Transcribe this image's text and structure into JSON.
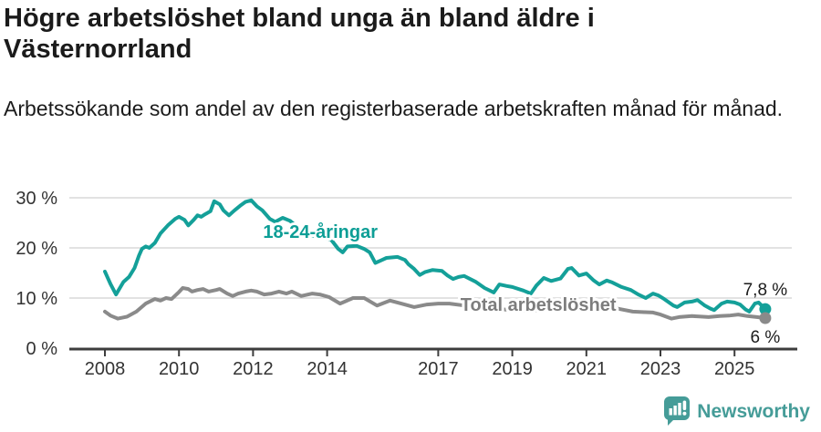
{
  "header": {
    "title": "Högre arbetslöshet bland unga än bland äldre i Västernorrland",
    "subtitle": "Arbetssökande som andel av den registerbaserade arbetskraften månad för månad."
  },
  "footer": {
    "brand": "Newsworthy",
    "logo_icon": "newsworthy-speech-bubble-bar-chart"
  },
  "colors": {
    "youth_line": "#14a099",
    "total_line": "#8a8a8a",
    "total_label": "#7d7d7d",
    "axis": "#3d3d3d",
    "grid": "#d9d9d9",
    "text": "#1b1b1b",
    "brand": "#459c98"
  },
  "chart_data": {
    "type": "line",
    "unit": "%",
    "grid": "horizontal",
    "legend_position": "inline-labels",
    "x_axis": {
      "min": 2007.85,
      "max": 2026.1,
      "ticks": [
        {
          "value": 2008,
          "label": "2008"
        },
        {
          "value": 2010,
          "label": "2010"
        },
        {
          "value": 2012,
          "label": "2012"
        },
        {
          "value": 2014,
          "label": "2014"
        },
        {
          "value": 2017,
          "label": "2017"
        },
        {
          "value": 2019,
          "label": "2019"
        },
        {
          "value": 2021,
          "label": "2021"
        },
        {
          "value": 2023,
          "label": "2023"
        },
        {
          "value": 2025,
          "label": "2025"
        }
      ]
    },
    "y_axis": {
      "min": 0,
      "max": 30,
      "ticks": [
        {
          "value": 0,
          "label": "0 %"
        },
        {
          "value": 10,
          "label": "10 %"
        },
        {
          "value": 20,
          "label": "20 %"
        },
        {
          "value": 30,
          "label": "30 %"
        }
      ]
    },
    "series": [
      {
        "name": "18-24-åringar",
        "color": "#14a099",
        "end_value_label": "7,8 %",
        "end_label_position": "above",
        "points": [
          [
            2008,
            15.3
          ],
          [
            2008.15,
            12.8
          ],
          [
            2008.3,
            10.7
          ],
          [
            2008.5,
            13.2
          ],
          [
            2008.65,
            14.2
          ],
          [
            2008.8,
            16
          ],
          [
            2008.92,
            18.5
          ],
          [
            2009,
            19.8
          ],
          [
            2009.1,
            20.3
          ],
          [
            2009.2,
            20
          ],
          [
            2009.35,
            21
          ],
          [
            2009.5,
            22.9
          ],
          [
            2009.7,
            24.5
          ],
          [
            2009.9,
            25.8
          ],
          [
            2010,
            26.2
          ],
          [
            2010.15,
            25.6
          ],
          [
            2010.25,
            24.5
          ],
          [
            2010.4,
            25.6
          ],
          [
            2010.5,
            26.5
          ],
          [
            2010.6,
            26.2
          ],
          [
            2010.7,
            26.7
          ],
          [
            2010.85,
            27.3
          ],
          [
            2010.95,
            29.3
          ],
          [
            2011.1,
            28.7
          ],
          [
            2011.2,
            27.5
          ],
          [
            2011.35,
            26.5
          ],
          [
            2011.5,
            27.5
          ],
          [
            2011.65,
            28.4
          ],
          [
            2011.8,
            29.2
          ],
          [
            2011.95,
            29.5
          ],
          [
            2012.1,
            28.3
          ],
          [
            2012.25,
            27.5
          ],
          [
            2012.45,
            25.8
          ],
          [
            2012.6,
            25.2
          ],
          [
            2012.8,
            26
          ],
          [
            2013,
            25.4
          ],
          [
            2013.3,
            23.5
          ],
          [
            2013.6,
            22.5
          ],
          [
            2013.9,
            22
          ],
          [
            2014.1,
            21.7
          ],
          [
            2014.3,
            19.8
          ],
          [
            2014.42,
            19.1
          ],
          [
            2014.55,
            20.3
          ],
          [
            2014.8,
            20.4
          ],
          [
            2015,
            19.8
          ],
          [
            2015.15,
            19.1
          ],
          [
            2015.3,
            17
          ],
          [
            2015.45,
            17.5
          ],
          [
            2015.6,
            18
          ],
          [
            2015.9,
            18.2
          ],
          [
            2016.1,
            17.6
          ],
          [
            2016.2,
            16.7
          ],
          [
            2016.35,
            15.8
          ],
          [
            2016.5,
            14.6
          ],
          [
            2016.65,
            15.2
          ],
          [
            2016.85,
            15.6
          ],
          [
            2017.1,
            15.4
          ],
          [
            2017.25,
            14.5
          ],
          [
            2017.4,
            13.8
          ],
          [
            2017.55,
            14.2
          ],
          [
            2017.7,
            14.4
          ],
          [
            2018,
            13.3
          ],
          [
            2018.25,
            12
          ],
          [
            2018.5,
            11.1
          ],
          [
            2018.65,
            12.7
          ],
          [
            2018.85,
            12.4
          ],
          [
            2019,
            12.2
          ],
          [
            2019.3,
            11.5
          ],
          [
            2019.5,
            10.9
          ],
          [
            2019.65,
            12.5
          ],
          [
            2019.85,
            14
          ],
          [
            2020.05,
            13.4
          ],
          [
            2020.3,
            13.9
          ],
          [
            2020.5,
            15.8
          ],
          [
            2020.6,
            16
          ],
          [
            2020.8,
            14.5
          ],
          [
            2021,
            14.9
          ],
          [
            2021.2,
            13.5
          ],
          [
            2021.35,
            12.7
          ],
          [
            2021.55,
            13.5
          ],
          [
            2021.7,
            13.1
          ],
          [
            2021.95,
            12.2
          ],
          [
            2022.2,
            11.6
          ],
          [
            2022.4,
            10.7
          ],
          [
            2022.6,
            10
          ],
          [
            2022.8,
            10.9
          ],
          [
            2022.95,
            10.5
          ],
          [
            2023.1,
            9.8
          ],
          [
            2023.35,
            8.5
          ],
          [
            2023.45,
            8.2
          ],
          [
            2023.65,
            9.1
          ],
          [
            2023.85,
            9.3
          ],
          [
            2024,
            9.6
          ],
          [
            2024.2,
            8.5
          ],
          [
            2024.35,
            7.9
          ],
          [
            2024.45,
            7.6
          ],
          [
            2024.65,
            8.9
          ],
          [
            2024.8,
            9.3
          ],
          [
            2025,
            9.1
          ],
          [
            2025.15,
            8.7
          ],
          [
            2025.3,
            7.7
          ],
          [
            2025.4,
            7.3
          ],
          [
            2025.55,
            8.9
          ],
          [
            2025.65,
            9.1
          ],
          [
            2025.83,
            7.8
          ]
        ]
      },
      {
        "name": "Total arbetslöshet",
        "color": "#8a8a8a",
        "end_value_label": "6 %",
        "end_label_position": "below",
        "points": [
          [
            2008,
            7.3
          ],
          [
            2008.15,
            6.5
          ],
          [
            2008.35,
            5.9
          ],
          [
            2008.6,
            6.3
          ],
          [
            2008.85,
            7.3
          ],
          [
            2009.1,
            8.9
          ],
          [
            2009.35,
            9.8
          ],
          [
            2009.5,
            9.5
          ],
          [
            2009.65,
            10
          ],
          [
            2009.8,
            9.8
          ],
          [
            2010,
            11.2
          ],
          [
            2010.1,
            12
          ],
          [
            2010.25,
            11.8
          ],
          [
            2010.35,
            11.3
          ],
          [
            2010.5,
            11.6
          ],
          [
            2010.65,
            11.8
          ],
          [
            2010.8,
            11.3
          ],
          [
            2011,
            11.6
          ],
          [
            2011.1,
            11.8
          ],
          [
            2011.3,
            10.9
          ],
          [
            2011.45,
            10.4
          ],
          [
            2011.6,
            10.9
          ],
          [
            2011.8,
            11.3
          ],
          [
            2011.95,
            11.5
          ],
          [
            2012.1,
            11.3
          ],
          [
            2012.3,
            10.7
          ],
          [
            2012.5,
            10.9
          ],
          [
            2012.7,
            11.3
          ],
          [
            2012.9,
            10.9
          ],
          [
            2013.05,
            11.3
          ],
          [
            2013.3,
            10.4
          ],
          [
            2013.6,
            10.9
          ],
          [
            2013.8,
            10.7
          ],
          [
            2014.05,
            10.2
          ],
          [
            2014.35,
            8.9
          ],
          [
            2014.7,
            10
          ],
          [
            2015,
            10
          ],
          [
            2015.35,
            8.5
          ],
          [
            2015.7,
            9.5
          ],
          [
            2016,
            8.9
          ],
          [
            2016.35,
            8.2
          ],
          [
            2016.7,
            8.7
          ],
          [
            2017,
            8.9
          ],
          [
            2017.3,
            8.9
          ],
          [
            2017.6,
            8.6
          ],
          [
            2018,
            8.2
          ],
          [
            2018.5,
            7.9
          ],
          [
            2019,
            7.6
          ],
          [
            2019.5,
            7.4
          ],
          [
            2020,
            8
          ],
          [
            2020.5,
            9.3
          ],
          [
            2021,
            9
          ],
          [
            2021.5,
            8.4
          ],
          [
            2021.9,
            7.8
          ],
          [
            2022.25,
            7.3
          ],
          [
            2022.5,
            7.2
          ],
          [
            2022.8,
            7.1
          ],
          [
            2023,
            6.7
          ],
          [
            2023.3,
            5.9
          ],
          [
            2023.5,
            6.2
          ],
          [
            2023.85,
            6.4
          ],
          [
            2024.1,
            6.3
          ],
          [
            2024.3,
            6.2
          ],
          [
            2024.6,
            6.4
          ],
          [
            2024.85,
            6.5
          ],
          [
            2025.1,
            6.7
          ],
          [
            2025.35,
            6.4
          ],
          [
            2025.6,
            6.2
          ],
          [
            2025.83,
            6
          ]
        ]
      }
    ],
    "annotations": [
      {
        "text": "18-24-åringar",
        "x": 2012.27,
        "y": 22.0,
        "color": "#0d9e96"
      },
      {
        "text": "Total arbetslöshet",
        "x": 2017.6,
        "y": 7.5,
        "color": "#7d7d7d"
      }
    ]
  }
}
